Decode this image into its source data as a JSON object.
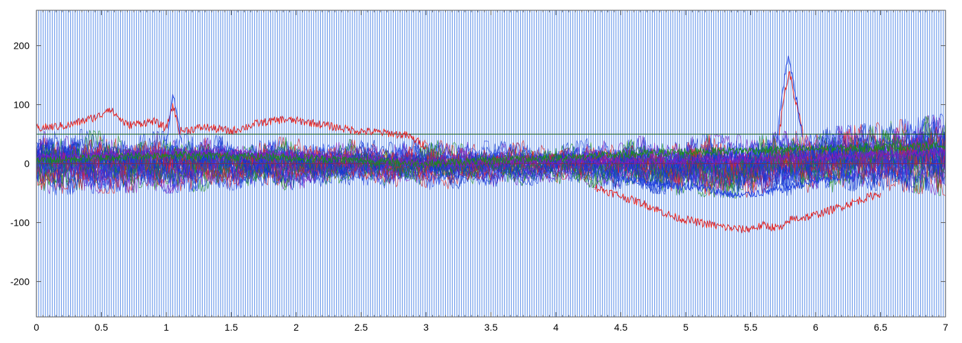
{
  "chart_data": {
    "type": "line",
    "title": "",
    "xlabel": "",
    "ylabel": "",
    "xlim": [
      0,
      7
    ],
    "ylim": [
      -260,
      260
    ],
    "x_ticks": [
      0,
      0.5,
      1,
      1.5,
      2,
      2.5,
      3,
      3.5,
      4,
      4.5,
      5,
      5.5,
      6,
      6.5,
      7
    ],
    "x_tick_labels": [
      "0",
      "0.5",
      "1",
      "1.5",
      "2",
      "2.5",
      "3",
      "3.5",
      "4",
      "4.5",
      "5",
      "5.5",
      "6",
      "6.5",
      "7"
    ],
    "y_ticks": [
      200,
      100,
      0,
      -100,
      -200
    ],
    "y_tick_labels": [
      "200",
      "100",
      "0",
      "-100",
      "-200"
    ],
    "grid": false,
    "legend": "none",
    "background_stripes": {
      "color": "#6f9ceb",
      "spacing_x": 0.0175,
      "range": [
        -260,
        260
      ]
    },
    "reference_lines": [
      {
        "y": 50,
        "color": "#1a5c1a"
      },
      {
        "y": 0,
        "color": "#7a2a5a"
      }
    ],
    "series": [
      {
        "color": "#e02020",
        "x": [
          0,
          0.25,
          0.5,
          0.55,
          0.7,
          0.9,
          1.0,
          1.05,
          1.1,
          1.3,
          1.5,
          1.7,
          1.9,
          2.1,
          2.3,
          2.5,
          2.7,
          2.85,
          3.0
        ],
        "y": [
          60,
          65,
          82,
          95,
          65,
          72,
          60,
          100,
          55,
          62,
          55,
          68,
          75,
          70,
          62,
          55,
          52,
          48,
          30
        ]
      },
      {
        "color": "#e02020",
        "x": [
          4.3,
          4.5,
          4.7,
          4.9,
          5.1,
          5.3,
          5.45,
          5.6,
          5.75,
          5.8,
          5.95,
          6.1,
          6.3,
          6.5
        ],
        "y": [
          -40,
          -55,
          -70,
          -90,
          -100,
          -108,
          -112,
          -105,
          -110,
          -95,
          -90,
          -80,
          -65,
          -50
        ]
      },
      {
        "color": "#e02020",
        "x": [
          5.72,
          5.76,
          5.8,
          5.84,
          5.9
        ],
        "y": [
          50,
          120,
          155,
          110,
          55
        ]
      },
      {
        "color": "#1f3fe0",
        "x": [
          1.0,
          1.03,
          1.05,
          1.08,
          1.12
        ],
        "y": [
          30,
          85,
          120,
          80,
          35
        ]
      },
      {
        "color": "#1f3fe0",
        "x": [
          5.7,
          5.75,
          5.79,
          5.83,
          5.9
        ],
        "y": [
          40,
          130,
          185,
          135,
          45
        ]
      },
      {
        "color": "#1f3fe0",
        "x": [
          4.5,
          4.8,
          5.1,
          5.4,
          5.7,
          6.0,
          6.3
        ],
        "y": [
          -25,
          -35,
          -40,
          -55,
          -45,
          -30,
          -20
        ]
      },
      {
        "color": "#7a1fc0",
        "x": [
          0,
          1,
          2,
          3,
          4,
          5,
          6,
          7
        ],
        "y": [
          10,
          20,
          15,
          0,
          5,
          5,
          10,
          20
        ]
      },
      {
        "color": "#1a8c1a",
        "x": [
          0,
          1,
          2,
          3,
          4,
          5,
          6,
          7
        ],
        "y": [
          5,
          15,
          10,
          0,
          10,
          20,
          25,
          30
        ]
      }
    ],
    "noise_band": {
      "x": [
        0,
        0.5,
        1.0,
        1.5,
        2.0,
        2.5,
        3.0,
        3.5,
        4.0,
        4.5,
        5.0,
        5.5,
        6.0,
        6.5,
        7.0
      ],
      "upper": [
        55,
        45,
        45,
        35,
        35,
        30,
        30,
        28,
        30,
        35,
        40,
        40,
        50,
        60,
        75
      ],
      "lower": [
        -45,
        -40,
        -40,
        -35,
        -35,
        -30,
        -35,
        -30,
        -25,
        -35,
        -45,
        -50,
        -40,
        -35,
        -45
      ],
      "colors": [
        "#1f3fe0",
        "#7a1fc0",
        "#1a8c1a",
        "#e02020",
        "#1f3fe0",
        "#0a2fc8"
      ]
    }
  }
}
